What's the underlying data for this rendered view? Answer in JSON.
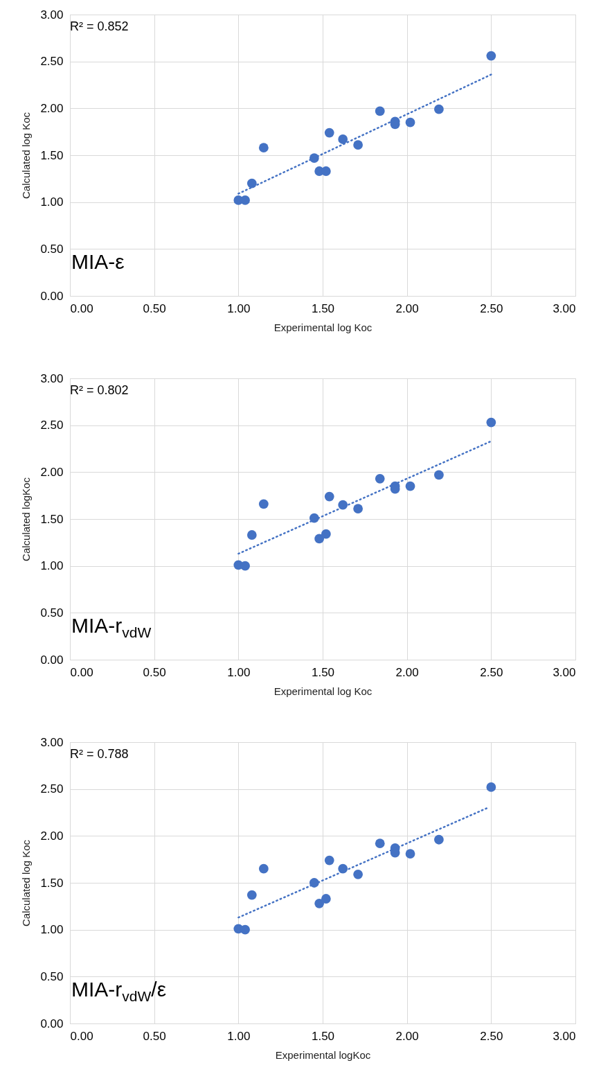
{
  "chart_data": [
    {
      "type": "scatter",
      "xlabel": "Experimental log Koc",
      "ylabel": "Calculated log Koc",
      "annotations": [
        "R² = 0.852",
        "MIA-ε"
      ],
      "xlim": [
        0,
        3
      ],
      "ylim": [
        0,
        3
      ],
      "xticks": [
        {
          "value": 0,
          "label": "0.00"
        },
        {
          "value": 0.5,
          "label": "0.50"
        },
        {
          "value": 1,
          "label": "1.00"
        },
        {
          "value": 1.5,
          "label": "1.50"
        },
        {
          "value": 2,
          "label": "2.00"
        },
        {
          "value": 2.5,
          "label": "2.50"
        },
        {
          "value": 3,
          "label": "3.00"
        }
      ],
      "yticks": [
        {
          "value": 0,
          "label": "0.00"
        },
        {
          "value": 0.5,
          "label": "0.50"
        },
        {
          "value": 1,
          "label": "1.00"
        },
        {
          "value": 1.5,
          "label": "1.50"
        },
        {
          "value": 2,
          "label": "2.00"
        },
        {
          "value": 2.5,
          "label": "2.50"
        },
        {
          "value": 3,
          "label": "3.00"
        }
      ],
      "grid": true,
      "x": [
        1.0,
        1.04,
        1.08,
        1.15,
        1.45,
        1.48,
        1.52,
        1.54,
        1.62,
        1.71,
        1.84,
        1.93,
        1.93,
        2.02,
        2.19,
        2.5
      ],
      "series": [
        {
          "color": "#4472c4",
          "marker": "circle",
          "values": [
            1.02,
            1.02,
            1.2,
            1.58,
            1.47,
            1.33,
            1.33,
            1.74,
            1.67,
            1.61,
            1.97,
            1.86,
            1.83,
            1.85,
            1.99,
            2.56
          ]
        },
        {
          "type": "line",
          "color": "#4472c4",
          "line_style": "dotted",
          "x": [
            1.0,
            2.5
          ],
          "values": [
            1.09,
            2.36
          ]
        }
      ]
    },
    {
      "type": "scatter",
      "xlabel": "Experimental log Koc",
      "ylabel": "Calculated logKoc",
      "annotations": [
        "R² = 0.802",
        "MIA-r$_{vdW}$"
      ],
      "xlim": [
        0,
        3
      ],
      "ylim": [
        0,
        3
      ],
      "xticks": [
        {
          "value": 0,
          "label": "0.00"
        },
        {
          "value": 0.5,
          "label": "0.50"
        },
        {
          "value": 1,
          "label": "1.00"
        },
        {
          "value": 1.5,
          "label": "1.50"
        },
        {
          "value": 2,
          "label": "2.00"
        },
        {
          "value": 2.5,
          "label": "2.50"
        },
        {
          "value": 3,
          "label": "3.00"
        }
      ],
      "yticks": [
        {
          "value": 0,
          "label": "0.00"
        },
        {
          "value": 0.5,
          "label": "0.50"
        },
        {
          "value": 1,
          "label": "1.00"
        },
        {
          "value": 1.5,
          "label": "1.50"
        },
        {
          "value": 2,
          "label": "2.00"
        },
        {
          "value": 2.5,
          "label": "2.50"
        },
        {
          "value": 3,
          "label": "3.00"
        }
      ],
      "grid": true,
      "x": [
        1.0,
        1.04,
        1.08,
        1.15,
        1.45,
        1.48,
        1.52,
        1.54,
        1.62,
        1.71,
        1.84,
        1.93,
        1.93,
        2.02,
        2.19,
        2.5
      ],
      "series": [
        {
          "color": "#4472c4",
          "marker": "circle",
          "values": [
            1.01,
            1.0,
            1.33,
            1.66,
            1.51,
            1.29,
            1.34,
            1.74,
            1.65,
            1.61,
            1.93,
            1.85,
            1.82,
            1.85,
            1.97,
            2.53
          ]
        },
        {
          "type": "line",
          "color": "#4472c4",
          "line_style": "dotted",
          "x": [
            1.0,
            2.5
          ],
          "values": [
            1.13,
            2.33
          ]
        }
      ]
    },
    {
      "type": "scatter",
      "xlabel": "Experimental logKoc",
      "ylabel": "Calculated log Koc",
      "annotations": [
        "R² = 0.788",
        "MIA-r$_{vdW}$/ε"
      ],
      "xlim": [
        0,
        3
      ],
      "ylim": [
        0,
        3
      ],
      "xticks": [
        {
          "value": 0,
          "label": "0.00"
        },
        {
          "value": 0.5,
          "label": "0.50"
        },
        {
          "value": 1,
          "label": "1.00"
        },
        {
          "value": 1.5,
          "label": "1.50"
        },
        {
          "value": 2,
          "label": "2.00"
        },
        {
          "value": 2.5,
          "label": "2.50"
        },
        {
          "value": 3,
          "label": "3.00"
        }
      ],
      "yticks": [
        {
          "value": 0,
          "label": "0.00"
        },
        {
          "value": 0.5,
          "label": "0.50"
        },
        {
          "value": 1,
          "label": "1.00"
        },
        {
          "value": 1.5,
          "label": "1.50"
        },
        {
          "value": 2,
          "label": "2.00"
        },
        {
          "value": 2.5,
          "label": "2.50"
        },
        {
          "value": 3,
          "label": "3.00"
        }
      ],
      "grid": true,
      "x": [
        1.0,
        1.04,
        1.08,
        1.15,
        1.45,
        1.48,
        1.52,
        1.54,
        1.62,
        1.71,
        1.84,
        1.93,
        1.93,
        2.02,
        2.19,
        2.5
      ],
      "series": [
        {
          "color": "#4472c4",
          "marker": "circle",
          "values": [
            1.01,
            1.0,
            1.37,
            1.65,
            1.5,
            1.28,
            1.33,
            1.74,
            1.65,
            1.59,
            1.92,
            1.87,
            1.82,
            1.81,
            1.96,
            2.52
          ]
        },
        {
          "type": "line",
          "color": "#4472c4",
          "line_style": "dotted",
          "x": [
            1.0,
            2.48
          ],
          "values": [
            1.13,
            2.3
          ]
        }
      ]
    }
  ]
}
